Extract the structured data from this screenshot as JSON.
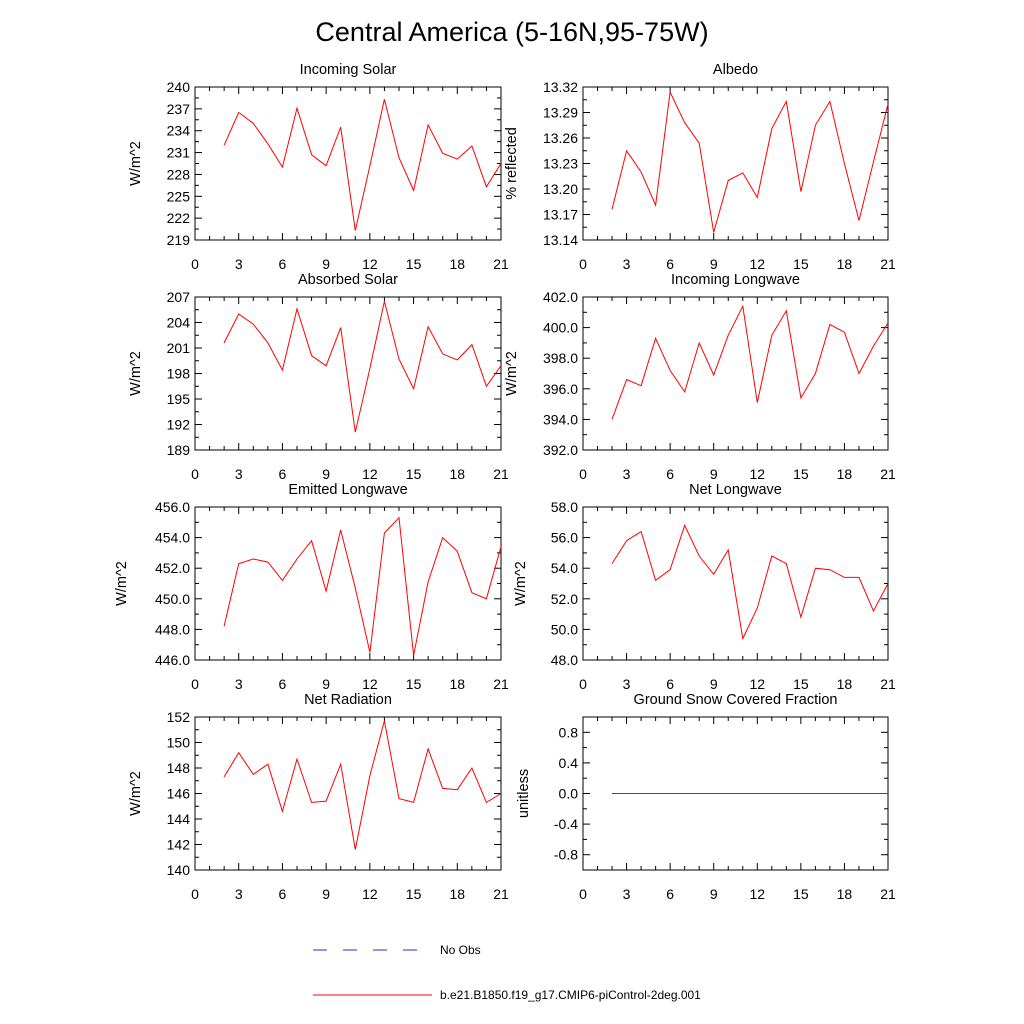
{
  "figure": {
    "title": "Central America (5-16N,95-75W)"
  },
  "legend": {
    "items": [
      {
        "label": "No Obs",
        "color": "#2a2ad0",
        "style": "dashed"
      },
      {
        "label": "b.e21.B1850.f19_g17.CMIP6-piControl-2deg.001",
        "color": "#ff0000",
        "style": "solid"
      }
    ]
  },
  "chart_data": [
    {
      "type": "line",
      "title": "Incoming Solar",
      "ylabel": "W/m^2",
      "xlim": [
        0,
        21
      ],
      "ylim": [
        219,
        240
      ],
      "xticks": [
        "0",
        "3",
        "6",
        "9",
        "12",
        "15",
        "18",
        "21"
      ],
      "yticks": [
        "219",
        "222",
        "225",
        "228",
        "231",
        "234",
        "237",
        "240"
      ],
      "series": [
        {
          "name": "b.e21.B1850.f19_g17.CMIP6-piControl-2deg.001",
          "color": "#ff0000",
          "x": [
            2,
            3,
            4,
            5,
            6,
            7,
            8,
            9,
            10,
            11,
            12,
            13,
            14,
            15,
            16,
            17,
            18,
            19,
            20,
            21
          ],
          "y": [
            232.0,
            236.5,
            235.0,
            232.2,
            229.0,
            237.1,
            230.7,
            229.2,
            234.5,
            220.3,
            229.2,
            238.3,
            230.3,
            225.8,
            234.8,
            230.9,
            230.1,
            231.9,
            226.3,
            229.5
          ]
        }
      ]
    },
    {
      "type": "line",
      "title": "Albedo",
      "ylabel": "% reflected",
      "xlim": [
        0,
        21
      ],
      "ylim": [
        13.14,
        13.32
      ],
      "xticks": [
        "0",
        "3",
        "6",
        "9",
        "12",
        "15",
        "18",
        "21"
      ],
      "yticks": [
        "13.14",
        "13.17",
        "13.20",
        "13.23",
        "13.26",
        "13.29",
        "13.32"
      ],
      "series": [
        {
          "name": "b.e21.B1850.f19_g17.CMIP6-piControl-2deg.001",
          "color": "#ff0000",
          "x": [
            2,
            3,
            4,
            5,
            6,
            7,
            8,
            9,
            10,
            11,
            12,
            13,
            14,
            15,
            16,
            17,
            18,
            19,
            20,
            21
          ],
          "y": [
            13.176,
            13.245,
            13.22,
            13.181,
            13.314,
            13.278,
            13.254,
            13.149,
            13.21,
            13.219,
            13.19,
            13.271,
            13.303,
            13.197,
            13.275,
            13.303,
            13.23,
            13.163,
            13.232,
            13.3
          ]
        }
      ]
    },
    {
      "type": "line",
      "title": "Absorbed Solar",
      "ylabel": "W/m^2",
      "xlim": [
        0,
        21
      ],
      "ylim": [
        189,
        207
      ],
      "xticks": [
        "0",
        "3",
        "6",
        "9",
        "12",
        "15",
        "18",
        "21"
      ],
      "yticks": [
        "189",
        "192",
        "195",
        "198",
        "201",
        "204",
        "207"
      ],
      "series": [
        {
          "name": "b.e21.B1850.f19_g17.CMIP6-piControl-2deg.001",
          "color": "#ff0000",
          "x": [
            2,
            3,
            4,
            5,
            6,
            7,
            8,
            9,
            10,
            11,
            12,
            13,
            14,
            15,
            16,
            17,
            18,
            19,
            20,
            21
          ],
          "y": [
            201.6,
            205.0,
            203.8,
            201.6,
            198.4,
            205.6,
            200.1,
            198.9,
            203.4,
            191.1,
            198.6,
            206.5,
            199.7,
            196.2,
            203.5,
            200.3,
            199.6,
            201.4,
            196.5,
            198.9
          ]
        }
      ]
    },
    {
      "type": "line",
      "title": "Incoming Longwave",
      "ylabel": "W/m^2",
      "xlim": [
        0,
        21
      ],
      "ylim": [
        392.0,
        402.0
      ],
      "xticks": [
        "0",
        "3",
        "6",
        "9",
        "12",
        "15",
        "18",
        "21"
      ],
      "yticks": [
        "392.0",
        "394.0",
        "396.0",
        "398.0",
        "400.0",
        "402.0"
      ],
      "series": [
        {
          "name": "b.e21.B1850.f19_g17.CMIP6-piControl-2deg.001",
          "color": "#ff0000",
          "x": [
            2,
            3,
            4,
            5,
            6,
            7,
            8,
            9,
            10,
            11,
            12,
            13,
            14,
            15,
            16,
            17,
            18,
            19,
            20,
            21
          ],
          "y": [
            394.0,
            396.6,
            396.2,
            399.3,
            397.2,
            395.8,
            399.0,
            396.9,
            399.5,
            401.4,
            395.1,
            399.5,
            401.1,
            395.4,
            397.0,
            400.2,
            399.7,
            397.0,
            398.8,
            400.3
          ]
        }
      ]
    },
    {
      "type": "line",
      "title": "Emitted Longwave",
      "ylabel": "W/m^2",
      "xlim": [
        0,
        21
      ],
      "ylim": [
        446.0,
        456.0
      ],
      "xticks": [
        "0",
        "3",
        "6",
        "9",
        "12",
        "15",
        "18",
        "21"
      ],
      "yticks": [
        "446.0",
        "448.0",
        "450.0",
        "452.0",
        "454.0",
        "456.0"
      ],
      "series": [
        {
          "name": "b.e21.B1850.f19_g17.CMIP6-piControl-2deg.001",
          "color": "#ff0000",
          "x": [
            2,
            3,
            4,
            5,
            6,
            7,
            8,
            9,
            10,
            11,
            12,
            13,
            14,
            15,
            16,
            17,
            18,
            19,
            20,
            21
          ],
          "y": [
            448.2,
            452.3,
            452.6,
            452.4,
            451.2,
            452.6,
            453.8,
            450.5,
            454.5,
            450.7,
            446.5,
            454.3,
            455.3,
            446.3,
            451.1,
            454.0,
            453.1,
            450.4,
            450.0,
            453.4
          ]
        }
      ]
    },
    {
      "type": "line",
      "title": "Net Longwave",
      "ylabel": "W/m^2",
      "xlim": [
        0,
        21
      ],
      "ylim": [
        48.0,
        58.0
      ],
      "xticks": [
        "0",
        "3",
        "6",
        "9",
        "12",
        "15",
        "18",
        "21"
      ],
      "yticks": [
        "48.0",
        "50.0",
        "52.0",
        "54.0",
        "56.0",
        "58.0"
      ],
      "series": [
        {
          "name": "b.e21.B1850.f19_g17.CMIP6-piControl-2deg.001",
          "color": "#ff0000",
          "x": [
            2,
            3,
            4,
            5,
            6,
            7,
            8,
            9,
            10,
            11,
            12,
            13,
            14,
            15,
            16,
            17,
            18,
            19,
            20,
            21
          ],
          "y": [
            54.3,
            55.8,
            56.4,
            53.2,
            53.9,
            56.8,
            54.8,
            53.6,
            55.2,
            49.4,
            51.4,
            54.8,
            54.3,
            50.8,
            54.0,
            53.9,
            53.4,
            53.4,
            51.2,
            53.0
          ]
        }
      ]
    },
    {
      "type": "line",
      "title": "Net Radiation",
      "ylabel": "W/m^2",
      "xlim": [
        0,
        21
      ],
      "ylim": [
        140,
        152
      ],
      "xticks": [
        "0",
        "3",
        "6",
        "9",
        "12",
        "15",
        "18",
        "21"
      ],
      "yticks": [
        "140",
        "142",
        "144",
        "146",
        "148",
        "150",
        "152"
      ],
      "series": [
        {
          "name": "b.e21.B1850.f19_g17.CMIP6-piControl-2deg.001",
          "color": "#ff0000",
          "x": [
            2,
            3,
            4,
            5,
            6,
            7,
            8,
            9,
            10,
            11,
            12,
            13,
            14,
            15,
            16,
            17,
            18,
            19,
            20,
            21
          ],
          "y": [
            147.3,
            149.2,
            147.5,
            148.3,
            144.6,
            148.7,
            145.3,
            145.4,
            148.3,
            141.6,
            147.4,
            151.7,
            145.6,
            145.3,
            149.5,
            146.4,
            146.3,
            148.0,
            145.3,
            146.0
          ]
        }
      ]
    },
    {
      "type": "line",
      "title": "Ground Snow Covered Fraction",
      "ylabel": "unitless",
      "xlim": [
        0,
        21
      ],
      "ylim": [
        -1.0,
        1.0
      ],
      "xticks": [
        "0",
        "3",
        "6",
        "9",
        "12",
        "15",
        "18",
        "21"
      ],
      "yticks": [
        "-0.8",
        "-0.4",
        "0.0",
        "0.4",
        "0.8"
      ],
      "ytick_values": [
        -0.8,
        -0.4,
        0.0,
        0.4,
        0.8
      ],
      "series": [
        {
          "name": "b.e21.B1850.f19_g17.CMIP6-piControl-2deg.001",
          "color": "#ff0000",
          "x": [
            2,
            3,
            4,
            5,
            6,
            7,
            8,
            9,
            10,
            11,
            12,
            13,
            14,
            15,
            16,
            17,
            18,
            19,
            20,
            21
          ],
          "y": [
            0,
            0,
            0,
            0,
            0,
            0,
            0,
            0,
            0,
            0,
            0,
            0,
            0,
            0,
            0,
            0,
            0,
            0,
            0,
            0
          ]
        }
      ]
    }
  ]
}
